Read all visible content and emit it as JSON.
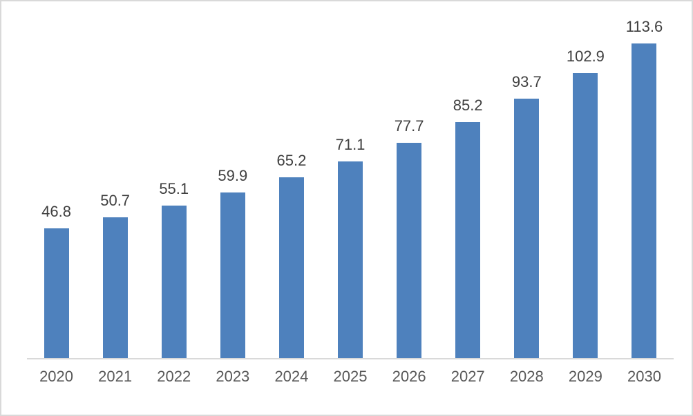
{
  "chart_data": {
    "type": "bar",
    "categories": [
      "2020",
      "2021",
      "2022",
      "2023",
      "2024",
      "2025",
      "2026",
      "2027",
      "2028",
      "2029",
      "2030"
    ],
    "values": [
      46.8,
      50.7,
      55.1,
      59.9,
      65.2,
      71.1,
      77.7,
      85.2,
      93.7,
      102.9,
      113.6
    ],
    "data_labels": [
      "46.8",
      "50.7",
      "55.1",
      "59.9",
      "65.2",
      "71.1",
      "77.7",
      "85.2",
      "93.7",
      "102.9",
      "113.6"
    ],
    "title": "",
    "xlabel": "",
    "ylabel": "",
    "ylim": [
      0,
      120
    ],
    "gridlines": false,
    "legend": "none",
    "colors": {
      "bar": "#4e81bd",
      "data_label": "#404040",
      "axis_label": "#595959",
      "axis_line": "#d9d9d9",
      "frame_border": "#d9d9d9",
      "background": "#ffffff"
    }
  }
}
